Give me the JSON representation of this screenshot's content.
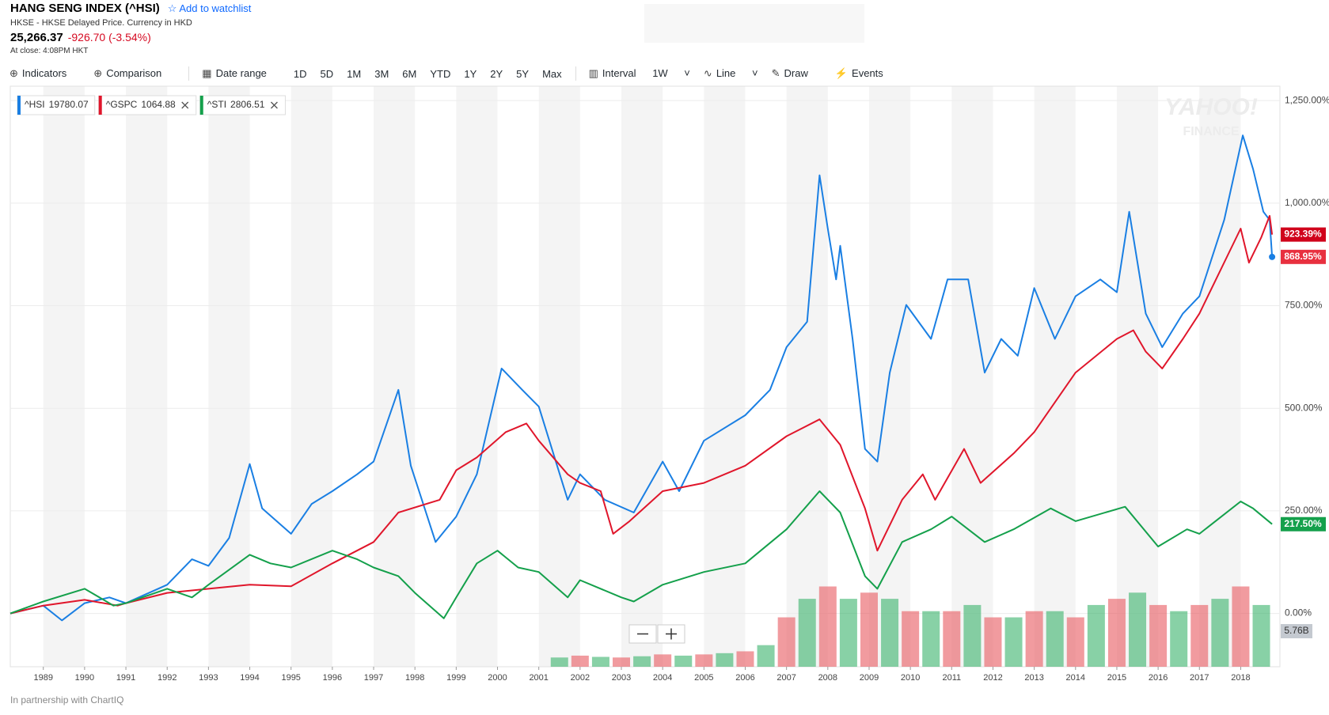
{
  "header": {
    "title": "HANG SENG INDEX (^HSI)",
    "watchlist": "Add to watchlist",
    "subtitle": "HKSE - HKSE Delayed Price. Currency in HKD",
    "price": "25,266.37",
    "change": "-926.70 (-3.54%)",
    "close_time": "At close: 4:08PM HKT"
  },
  "toolbar": [
    "Indicators",
    "Comparison",
    "Date range",
    "1D",
    "5D",
    "1M",
    "3M",
    "6M",
    "YTD",
    "1Y",
    "2Y",
    "5Y",
    "Max",
    "Interval",
    "1W",
    "Line",
    "Draw",
    "Events"
  ],
  "footer": "In partnership with ChartIQ",
  "watermark": [
    "YAHOO!",
    "FINANCE"
  ],
  "chart_data": {
    "type": "line",
    "xlim": [
      1988.2,
      2018.95
    ],
    "xticks": [
      1989,
      1990,
      1991,
      1992,
      1993,
      1994,
      1995,
      1996,
      1997,
      1998,
      1999,
      2000,
      2001,
      2002,
      2003,
      2004,
      2005,
      2006,
      2007,
      2008,
      2009,
      2010,
      2011,
      2012,
      2013,
      2014,
      2015,
      2016,
      2017,
      2018
    ],
    "ylim": [
      -130,
      1285
    ],
    "yticks": [
      {
        "value": 0,
        "label": "0.00%"
      },
      {
        "value": 250,
        "label": "250.00%"
      },
      {
        "value": 500,
        "label": "500.00%"
      },
      {
        "value": 750,
        "label": "750.00%"
      },
      {
        "value": 1000,
        "label": "1,000.00%"
      },
      {
        "value": 1250,
        "label": "1,250.00%"
      }
    ],
    "grid": true,
    "series": [
      {
        "name": "^HSI",
        "legend_value": 19780.07,
        "color": "#1a7fe3",
        "badge_color": "#e8303f",
        "last_label": "868.95%",
        "x": [
          1988.2,
          1989.0,
          1989.45,
          1990.0,
          1990.6,
          1991.0,
          1992.0,
          1992.6,
          1993.0,
          1993.5,
          1994.0,
          1994.3,
          1995.0,
          1995.5,
          1996.0,
          1996.6,
          1997.0,
          1997.6,
          1997.9,
          1998.5,
          1999.0,
          1999.5,
          2000.1,
          2000.6,
          2001.0,
          2001.7,
          2002.0,
          2002.6,
          2003.3,
          2004.0,
          2004.4,
          2005.0,
          2006.0,
          2006.6,
          2007.0,
          2007.5,
          2007.8,
          2008.0,
          2008.2,
          2008.3,
          2008.6,
          2008.9,
          2009.2,
          2009.5,
          2009.9,
          2010.5,
          2010.9,
          2011.4,
          2011.8,
          2012.2,
          2012.6,
          2013.0,
          2013.5,
          2014.0,
          2014.6,
          2015.0,
          2015.3,
          2015.7,
          2016.1,
          2016.6,
          2017.0,
          2017.6,
          2018.05,
          2018.3,
          2018.55,
          2018.7,
          2018.76
        ],
        "values": [
          0,
          19,
          -17,
          25,
          39,
          25,
          70,
          132,
          116,
          184,
          364,
          256,
          194,
          267,
          298,
          339,
          370,
          545,
          360,
          174,
          236,
          339,
          597,
          545,
          504,
          277,
          339,
          277,
          246,
          370,
          298,
          421,
          483,
          545,
          649,
          711,
          1068,
          938,
          814,
          896,
          669,
          401,
          370,
          587,
          752,
          669,
          814,
          814,
          587,
          669,
          628,
          793,
          669,
          773,
          814,
          783,
          979,
          731,
          649,
          731,
          773,
          959,
          1165,
          1083,
          979,
          959,
          868.95
        ]
      },
      {
        "name": "^GSPC",
        "legend_value": 1064.88,
        "color": "#e0162b",
        "badge_color": "#d0021b",
        "last_label": "923.39%",
        "x": [
          1988.2,
          1989.0,
          1990.0,
          1990.8,
          1991.0,
          1992.0,
          1993.0,
          1994.0,
          1995.0,
          1996.0,
          1997.0,
          1997.6,
          1998.6,
          1999.0,
          1999.5,
          2000.2,
          2000.7,
          2001.0,
          2001.7,
          2002.0,
          2002.5,
          2002.8,
          2003.2,
          2004.0,
          2005.0,
          2006.0,
          2007.0,
          2007.8,
          2008.3,
          2008.9,
          2009.2,
          2009.8,
          2010.3,
          2010.6,
          2011.3,
          2011.7,
          2012.5,
          2013.0,
          2014.0,
          2015.0,
          2015.4,
          2015.7,
          2016.1,
          2016.6,
          2017.0,
          2018.0,
          2018.2,
          2018.5,
          2018.7,
          2018.76
        ],
        "values": [
          0,
          19,
          33,
          19,
          25,
          50,
          60,
          70,
          66,
          122,
          174,
          246,
          277,
          349,
          380,
          442,
          463,
          421,
          339,
          318,
          298,
          194,
          225,
          298,
          318,
          360,
          432,
          473,
          411,
          256,
          153,
          277,
          339,
          277,
          401,
          318,
          390,
          442,
          587,
          669,
          690,
          638,
          597,
          669,
          731,
          938,
          855,
          917,
          969,
          923.39
        ]
      },
      {
        "name": "^STI",
        "legend_value": 2806.51,
        "color": "#14a04b",
        "badge_color": "#14a04b",
        "last_label": "217.50%",
        "x": [
          1988.2,
          1989.0,
          1990.0,
          1990.7,
          1991.0,
          1992.0,
          1992.6,
          1993.0,
          1994.0,
          1994.5,
          1995.0,
          1996.0,
          1996.6,
          1997.0,
          1997.6,
          1998.0,
          1998.7,
          1999.0,
          1999.5,
          2000.0,
          2000.5,
          2001.0,
          2001.7,
          2002.0,
          2003.0,
          2003.3,
          2004.0,
          2005.0,
          2006.0,
          2007.0,
          2007.8,
          2008.3,
          2008.9,
          2009.2,
          2009.8,
          2010.5,
          2011.0,
          2011.8,
          2012.5,
          2013.4,
          2014.0,
          2015.2,
          2016.0,
          2016.7,
          2017.0,
          2018.0,
          2018.3,
          2018.76
        ],
        "values": [
          0,
          29,
          60,
          19,
          25,
          60,
          39,
          70,
          143,
          122,
          112,
          153,
          132,
          112,
          91,
          50,
          -12,
          39,
          122,
          153,
          112,
          101,
          39,
          81,
          39,
          29,
          70,
          101,
          122,
          205,
          298,
          246,
          91,
          60,
          174,
          205,
          236,
          174,
          205,
          256,
          225,
          260,
          163,
          205,
          194,
          273,
          256,
          217.5
        ]
      }
    ],
    "volume": {
      "ylim": [
        0,
        94
      ],
      "last_value": 5.76,
      "last_label": "5.76B",
      "x": [
        2001.5,
        2002.0,
        2002.5,
        2003.0,
        2003.5,
        2004.0,
        2004.5,
        2005.0,
        2005.5,
        2006.0,
        2006.5,
        2007.0,
        2007.5,
        2008.0,
        2008.5,
        2009.0,
        2009.5,
        2010.0,
        2010.5,
        2011.0,
        2011.5,
        2012.0,
        2012.5,
        2013.0,
        2013.5,
        2014.0,
        2014.5,
        2015.0,
        2015.5,
        2016.0,
        2016.5,
        2017.0,
        2017.5,
        2018.0,
        2018.5
      ],
      "values": [
        1.5,
        1.8,
        1.6,
        1.5,
        1.7,
        2.0,
        1.8,
        2.0,
        2.2,
        2.5,
        3.5,
        8,
        11,
        13,
        11,
        12,
        11,
        9,
        9,
        9,
        10,
        8,
        8,
        9,
        9,
        8,
        10,
        11,
        12,
        10,
        9,
        10,
        11,
        13,
        10
      ]
    }
  }
}
